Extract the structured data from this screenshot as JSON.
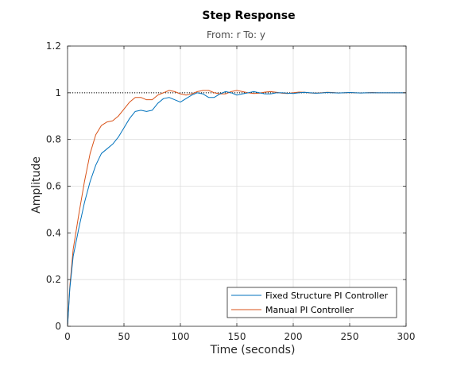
{
  "chart_data": {
    "type": "line",
    "title": "Step Response",
    "subtitle": "From: r  To: y",
    "xlabel": "Time (seconds)",
    "ylabel": "Amplitude",
    "xlim": [
      0,
      300
    ],
    "ylim": [
      0,
      1.2
    ],
    "xticks": [
      0,
      50,
      100,
      150,
      200,
      250,
      300
    ],
    "yticks": [
      0,
      0.2,
      0.4,
      0.6,
      0.8,
      1,
      1.2
    ],
    "xtick_labels": [
      "0",
      "50",
      "100",
      "150",
      "200",
      "250",
      "300"
    ],
    "ytick_labels": [
      "0",
      "0.2",
      "0.4",
      "0.6",
      "0.8",
      "1",
      "1.2"
    ],
    "grid": true,
    "legend_position": "bottom-right",
    "reference_line": {
      "y": 1,
      "style": "dotted",
      "color": "#000000"
    },
    "series": [
      {
        "name": "Fixed Structure PI Controller",
        "color": "#0072bd",
        "x": [
          0,
          2,
          5,
          10,
          15,
          20,
          25,
          30,
          35,
          40,
          45,
          50,
          55,
          60,
          65,
          70,
          75,
          80,
          85,
          90,
          95,
          100,
          105,
          110,
          115,
          120,
          125,
          130,
          135,
          140,
          145,
          150,
          155,
          160,
          165,
          170,
          175,
          180,
          185,
          190,
          195,
          200,
          205,
          210,
          215,
          220,
          225,
          230,
          235,
          240,
          245,
          250,
          255,
          260,
          265,
          270,
          275,
          280,
          285,
          290,
          295,
          300
        ],
        "y": [
          0.0,
          0.16,
          0.3,
          0.42,
          0.53,
          0.62,
          0.69,
          0.74,
          0.76,
          0.78,
          0.81,
          0.85,
          0.89,
          0.92,
          0.925,
          0.92,
          0.925,
          0.955,
          0.975,
          0.98,
          0.97,
          0.96,
          0.975,
          0.99,
          1.0,
          0.995,
          0.98,
          0.98,
          0.995,
          1.005,
          1.0,
          0.99,
          0.995,
          1.0,
          1.005,
          1.0,
          0.995,
          0.995,
          1.0,
          1.0,
          0.998,
          0.997,
          1.0,
          1.002,
          1.0,
          0.998,
          0.999,
          1.001,
          1.0,
          0.999,
          1.0,
          1.001,
          1.0,
          0.999,
          1.0,
          1.0,
          1.0,
          1.0,
          1.0,
          1.0,
          1.0,
          1.0
        ]
      },
      {
        "name": "Manual PI Controller",
        "color": "#d95319",
        "x": [
          0,
          2,
          5,
          10,
          15,
          20,
          25,
          30,
          35,
          40,
          45,
          50,
          55,
          60,
          65,
          70,
          75,
          80,
          85,
          90,
          95,
          100,
          105,
          110,
          115,
          120,
          125,
          130,
          135,
          140,
          145,
          150,
          155,
          160,
          165,
          170,
          175,
          180,
          185,
          190,
          195,
          200,
          205,
          210,
          215,
          220,
          225,
          230,
          235,
          240,
          245,
          250,
          255,
          260,
          265,
          270,
          275,
          280,
          285,
          290,
          295,
          300
        ],
        "y": [
          0.0,
          0.17,
          0.33,
          0.48,
          0.62,
          0.74,
          0.82,
          0.86,
          0.875,
          0.88,
          0.9,
          0.93,
          0.96,
          0.98,
          0.98,
          0.97,
          0.97,
          0.99,
          1.0,
          1.01,
          1.005,
          0.995,
          0.99,
          0.995,
          1.005,
          1.01,
          1.01,
          1.0,
          0.995,
          0.995,
          1.005,
          1.01,
          1.005,
          1.0,
          0.997,
          0.998,
          1.003,
          1.005,
          1.002,
          0.998,
          0.997,
          1.0,
          1.003,
          1.002,
          0.999,
          0.998,
          1.0,
          1.002,
          1.001,
          0.999,
          1.0,
          1.001,
          1.0,
          0.999,
          1.0,
          1.001,
          1.0,
          1.0,
          1.0,
          1.0,
          1.0,
          1.0
        ]
      }
    ]
  }
}
